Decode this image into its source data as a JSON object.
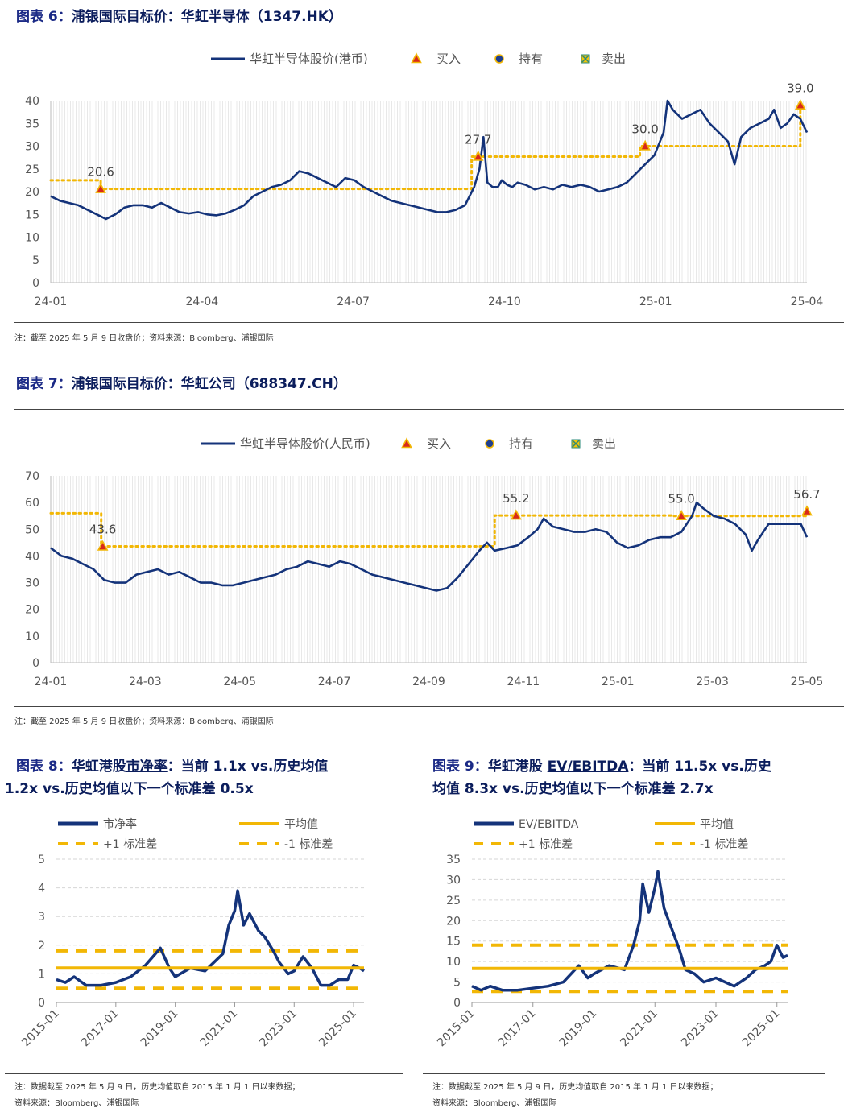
{
  "colors": {
    "price": "#14337a",
    "ref": "#f2b705",
    "buy": "#d8281b",
    "hold": "#1f3f8f",
    "sell": "#f2c40a"
  },
  "legend_top": {
    "buy": "买入",
    "hold": "持有",
    "sell": "卖出"
  },
  "fig6": {
    "label": "图表 6：",
    "title": "浦银国际目标价：华虹半导体（1347.HK）",
    "note": "注：截至 2025 年 5 月 9 日收盘价；资料来源：Bloomberg、浦银国际",
    "chart_data": {
      "type": "line",
      "series_name": "华虹半导体股价(港币)",
      "x_ticks": [
        "24-01",
        "24-04",
        "24-07",
        "24-10",
        "25-01",
        "25-04"
      ],
      "ylim": [
        0,
        40
      ],
      "y_ticks": [
        0,
        5,
        10,
        15,
        20,
        25,
        30,
        35,
        40
      ],
      "x_range_days": [
        0,
        495
      ],
      "price": [
        [
          0,
          19
        ],
        [
          7,
          18
        ],
        [
          14,
          17.5
        ],
        [
          21,
          17
        ],
        [
          28,
          16
        ],
        [
          35,
          15
        ],
        [
          42,
          14
        ],
        [
          49,
          15
        ],
        [
          56,
          16.5
        ],
        [
          63,
          17
        ],
        [
          70,
          17
        ],
        [
          77,
          16.5
        ],
        [
          84,
          17.5
        ],
        [
          91,
          16.5
        ],
        [
          98,
          15.5
        ],
        [
          105,
          15.2
        ],
        [
          112,
          15.5
        ],
        [
          119,
          15
        ],
        [
          126,
          14.8
        ],
        [
          133,
          15.2
        ],
        [
          140,
          16
        ],
        [
          147,
          17
        ],
        [
          154,
          19
        ],
        [
          161,
          20
        ],
        [
          168,
          21
        ],
        [
          175,
          21.5
        ],
        [
          182,
          22.5
        ],
        [
          189,
          24.5
        ],
        [
          196,
          24
        ],
        [
          203,
          23
        ],
        [
          210,
          22
        ],
        [
          217,
          21
        ],
        [
          224,
          23
        ],
        [
          231,
          22.5
        ],
        [
          238,
          21
        ],
        [
          245,
          20
        ],
        [
          252,
          19
        ],
        [
          259,
          18
        ],
        [
          266,
          17.5
        ],
        [
          273,
          17
        ],
        [
          280,
          16.5
        ],
        [
          287,
          16
        ],
        [
          294,
          15.5
        ],
        [
          301,
          15.5
        ],
        [
          308,
          16
        ],
        [
          315,
          17
        ],
        [
          322,
          21
        ],
        [
          326,
          25
        ],
        [
          329,
          32
        ],
        [
          332,
          22
        ],
        [
          336,
          21
        ],
        [
          340,
          21
        ],
        [
          343,
          22.5
        ],
        [
          347,
          21.5
        ],
        [
          351,
          21
        ],
        [
          355,
          22
        ],
        [
          361,
          21.5
        ],
        [
          368,
          20.5
        ],
        [
          375,
          21
        ],
        [
          382,
          20.5
        ],
        [
          389,
          21.5
        ],
        [
          396,
          21
        ],
        [
          403,
          21.5
        ],
        [
          410,
          21
        ],
        [
          417,
          20
        ],
        [
          424,
          20.5
        ],
        [
          431,
          21
        ],
        [
          438,
          22
        ],
        [
          445,
          24
        ],
        [
          452,
          26
        ],
        [
          459,
          28
        ],
        [
          466,
          33
        ],
        [
          469,
          40
        ],
        [
          473,
          38
        ],
        [
          480,
          36
        ],
        [
          487,
          37
        ],
        [
          494,
          38
        ],
        [
          501,
          35
        ],
        [
          508,
          33
        ],
        [
          515,
          31
        ],
        [
          520,
          26
        ],
        [
          525,
          32
        ],
        [
          532,
          34
        ],
        [
          539,
          35
        ],
        [
          546,
          36
        ],
        [
          550,
          38
        ],
        [
          555,
          34
        ],
        [
          560,
          35
        ],
        [
          565,
          37
        ],
        [
          570,
          36
        ],
        [
          575,
          33
        ]
      ],
      "target_line": [
        [
          0,
          22.5
        ],
        [
          38,
          22.5
        ],
        [
          38,
          20.6
        ],
        [
          320,
          20.6
        ],
        [
          320,
          27.7
        ],
        [
          448,
          27.7
        ],
        [
          448,
          30.0
        ],
        [
          570,
          30.0
        ],
        [
          570,
          39.0
        ]
      ],
      "buys": [
        [
          38,
          20.6
        ],
        [
          325,
          27.7
        ],
        [
          452,
          30.0
        ],
        [
          570,
          39.0
        ]
      ],
      "buy_labels": [
        "20.6",
        "27.7",
        "30.0",
        "39.0"
      ]
    }
  },
  "fig7": {
    "label": "图表 7：",
    "title": "浦银国际目标价：华虹公司（688347.CH）",
    "note": "注：截至 2025 年 5 月 9 日收盘价；资料来源：Bloomberg、浦银国际",
    "chart_data": {
      "type": "line",
      "series_name": "华虹半导体股价(人民币)",
      "x_ticks": [
        "24-01",
        "24-03",
        "24-05",
        "24-07",
        "24-09",
        "24-11",
        "25-01",
        "25-03",
        "25-05"
      ],
      "ylim": [
        0,
        70
      ],
      "y_ticks": [
        0,
        10,
        20,
        30,
        40,
        50,
        60,
        70
      ],
      "price": [
        [
          0,
          43
        ],
        [
          7,
          40
        ],
        [
          14,
          39
        ],
        [
          21,
          37
        ],
        [
          28,
          35
        ],
        [
          35,
          31
        ],
        [
          42,
          30
        ],
        [
          49,
          30
        ],
        [
          56,
          33
        ],
        [
          63,
          34
        ],
        [
          70,
          35
        ],
        [
          77,
          33
        ],
        [
          84,
          34
        ],
        [
          91,
          32
        ],
        [
          98,
          30
        ],
        [
          105,
          30
        ],
        [
          112,
          29
        ],
        [
          119,
          29
        ],
        [
          126,
          30
        ],
        [
          133,
          31
        ],
        [
          140,
          32
        ],
        [
          147,
          33
        ],
        [
          154,
          35
        ],
        [
          161,
          36
        ],
        [
          168,
          38
        ],
        [
          175,
          37
        ],
        [
          182,
          36
        ],
        [
          189,
          38
        ],
        [
          196,
          37
        ],
        [
          203,
          35
        ],
        [
          210,
          33
        ],
        [
          217,
          32
        ],
        [
          224,
          31
        ],
        [
          231,
          30
        ],
        [
          238,
          29
        ],
        [
          245,
          28
        ],
        [
          252,
          27
        ],
        [
          259,
          28
        ],
        [
          266,
          32
        ],
        [
          273,
          37
        ],
        [
          280,
          42
        ],
        [
          285,
          45
        ],
        [
          290,
          42
        ],
        [
          298,
          43
        ],
        [
          305,
          44
        ],
        [
          312,
          47
        ],
        [
          318,
          50
        ],
        [
          322,
          54
        ],
        [
          328,
          51
        ],
        [
          335,
          50
        ],
        [
          342,
          49
        ],
        [
          349,
          49
        ],
        [
          356,
          50
        ],
        [
          363,
          49
        ],
        [
          370,
          45
        ],
        [
          377,
          43
        ],
        [
          384,
          44
        ],
        [
          391,
          46
        ],
        [
          398,
          47
        ],
        [
          405,
          47
        ],
        [
          412,
          49
        ],
        [
          419,
          55
        ],
        [
          422,
          60
        ],
        [
          426,
          58
        ],
        [
          433,
          55
        ],
        [
          440,
          54
        ],
        [
          447,
          52
        ],
        [
          454,
          48
        ],
        [
          458,
          42
        ],
        [
          462,
          46
        ],
        [
          469,
          52
        ],
        [
          476,
          52
        ],
        [
          483,
          52
        ],
        [
          490,
          52
        ],
        [
          494,
          47
        ]
      ],
      "target_line": [
        [
          0,
          56
        ],
        [
          33,
          56
        ],
        [
          33,
          43.6
        ],
        [
          290,
          43.6
        ],
        [
          290,
          55.2
        ],
        [
          405,
          55.2
        ],
        [
          405,
          55.0
        ],
        [
          494,
          55.0
        ],
        [
          494,
          56.7
        ]
      ],
      "buys": [
        [
          34,
          43.6
        ],
        [
          304,
          55.2
        ],
        [
          412,
          55.0
        ],
        [
          494,
          56.7
        ]
      ],
      "buy_labels": [
        "43.6",
        "55.2",
        "55.0",
        "56.7"
      ]
    }
  },
  "fig8": {
    "label": "图表 8：",
    "title_a": "华虹港股",
    "title_u": "市净率",
    "title_b": "：当前 1.1x vs.历史均值",
    "title_line2": "1.2x vs.历史均值以下一个标准差 0.5x",
    "note1": "注：数据截至 2025 年 5 月 9 日，历史均值取自 2015 年 1 月 1 日以来数据；",
    "note2": "资料来源：Bloomberg、浦银国际",
    "chart_data": {
      "type": "line",
      "legend": [
        "市净率",
        "平均值",
        "+1 标准差",
        "-1 标准差"
      ],
      "x_ticks": [
        "2015-01",
        "2017-01",
        "2019-01",
        "2021-01",
        "2023-01",
        "2025-01"
      ],
      "ylim": [
        0,
        5
      ],
      "y_ticks": [
        0,
        1,
        2,
        3,
        4,
        5
      ],
      "mean": 1.2,
      "plus1": 1.8,
      "minus1": 0.5,
      "series": [
        [
          2015.0,
          0.8
        ],
        [
          2015.3,
          0.7
        ],
        [
          2015.6,
          0.9
        ],
        [
          2016.0,
          0.6
        ],
        [
          2016.5,
          0.6
        ],
        [
          2017.0,
          0.7
        ],
        [
          2017.5,
          0.9
        ],
        [
          2018.0,
          1.3
        ],
        [
          2018.5,
          1.9
        ],
        [
          2018.8,
          1.2
        ],
        [
          2019.0,
          0.9
        ],
        [
          2019.5,
          1.2
        ],
        [
          2020.0,
          1.1
        ],
        [
          2020.3,
          1.4
        ],
        [
          2020.6,
          1.7
        ],
        [
          2020.8,
          2.7
        ],
        [
          2021.0,
          3.2
        ],
        [
          2021.1,
          3.9
        ],
        [
          2021.3,
          2.7
        ],
        [
          2021.5,
          3.1
        ],
        [
          2021.8,
          2.5
        ],
        [
          2022.0,
          2.3
        ],
        [
          2022.3,
          1.8
        ],
        [
          2022.5,
          1.4
        ],
        [
          2022.8,
          1.0
        ],
        [
          2023.0,
          1.1
        ],
        [
          2023.3,
          1.6
        ],
        [
          2023.6,
          1.2
        ],
        [
          2023.9,
          0.6
        ],
        [
          2024.2,
          0.6
        ],
        [
          2024.5,
          0.8
        ],
        [
          2024.8,
          0.8
        ],
        [
          2025.0,
          1.3
        ],
        [
          2025.2,
          1.2
        ],
        [
          2025.35,
          1.1
        ]
      ]
    }
  },
  "fig9": {
    "label": "图表 9：",
    "title_a": "华虹港股 ",
    "title_u": "EV/EBITDA",
    "title_b": "：当前 11.5x vs.历史",
    "title_line2": "均值 8.3x vs.历史均值以下一个标准差 2.7x",
    "note1": "注：数据截至 2025 年 5 月 9 日，历史均值取自 2015 年 1 月 1 日以来数据；",
    "note2": "资料来源：Bloomberg、浦银国际",
    "chart_data": {
      "type": "line",
      "legend": [
        "EV/EBITDA",
        "平均值",
        "+1 标准差",
        "-1 标准差"
      ],
      "x_ticks": [
        "2015-01",
        "2017-01",
        "2019-01",
        "2021-01",
        "2023-01",
        "2025-01"
      ],
      "ylim": [
        0,
        35
      ],
      "y_ticks": [
        0,
        5,
        10,
        15,
        20,
        25,
        30,
        35
      ],
      "mean": 8.3,
      "plus1": 14,
      "minus1": 2.7,
      "series": [
        [
          2015.0,
          4
        ],
        [
          2015.3,
          3
        ],
        [
          2015.6,
          4
        ],
        [
          2016.0,
          3
        ],
        [
          2016.5,
          3
        ],
        [
          2017.0,
          3.5
        ],
        [
          2017.5,
          4
        ],
        [
          2018.0,
          5
        ],
        [
          2018.5,
          9
        ],
        [
          2018.8,
          6
        ],
        [
          2019.0,
          7
        ],
        [
          2019.5,
          9
        ],
        [
          2020.0,
          8
        ],
        [
          2020.3,
          14
        ],
        [
          2020.5,
          20
        ],
        [
          2020.6,
          29
        ],
        [
          2020.8,
          22
        ],
        [
          2021.0,
          28
        ],
        [
          2021.1,
          32
        ],
        [
          2021.3,
          23
        ],
        [
          2021.5,
          19
        ],
        [
          2021.8,
          13
        ],
        [
          2022.0,
          8
        ],
        [
          2022.3,
          7
        ],
        [
          2022.6,
          5
        ],
        [
          2023.0,
          6
        ],
        [
          2023.3,
          5
        ],
        [
          2023.6,
          4
        ],
        [
          2024.0,
          6
        ],
        [
          2024.3,
          8
        ],
        [
          2024.6,
          9
        ],
        [
          2024.8,
          10
        ],
        [
          2025.0,
          14
        ],
        [
          2025.2,
          11
        ],
        [
          2025.35,
          11.5
        ]
      ]
    }
  }
}
